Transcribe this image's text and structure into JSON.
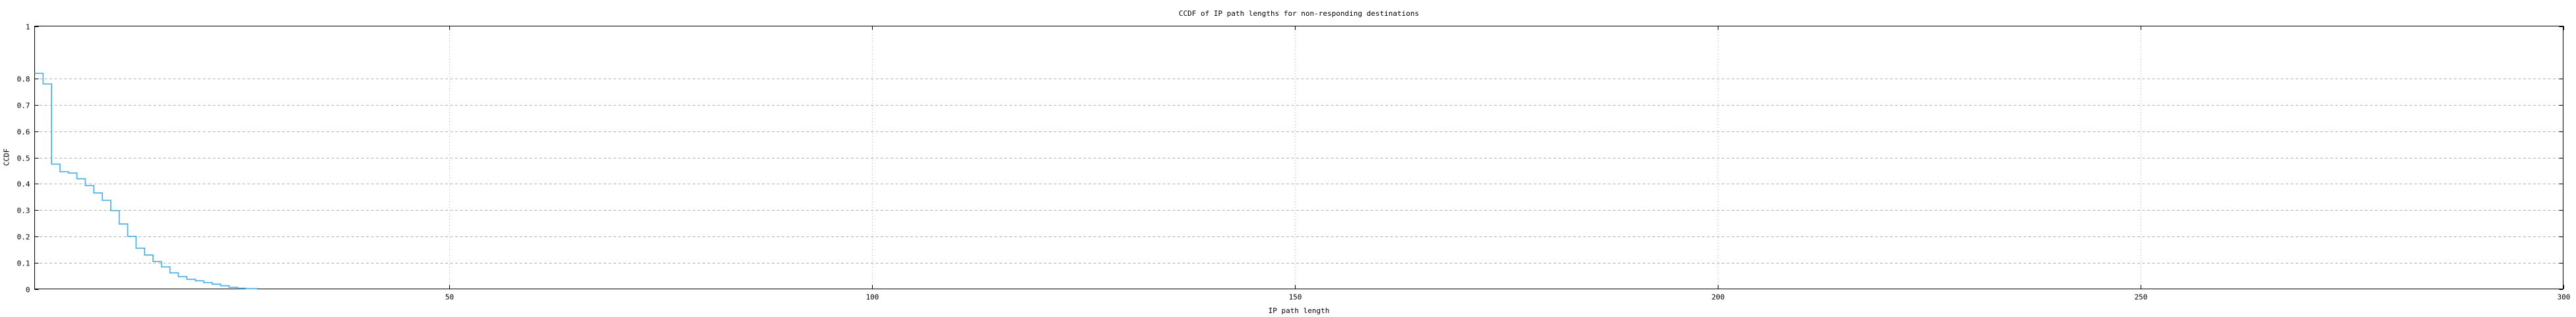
{
  "chart_data": {
    "type": "line",
    "subtype": "ccdf-staircase",
    "title": "CCDF of IP path lengths for non-responding destinations",
    "xlabel": "IP path length",
    "ylabel": "CCDF",
    "xlim": [
      1,
      300
    ],
    "ylim": [
      0,
      1
    ],
    "xticks": [
      {
        "v": 50,
        "label": "50"
      },
      {
        "v": 100,
        "label": "100"
      },
      {
        "v": 150,
        "label": "150"
      },
      {
        "v": 200,
        "label": "200"
      },
      {
        "v": 250,
        "label": "250"
      },
      {
        "v": 300,
        "label": "300"
      }
    ],
    "yticks": [
      {
        "v": 0.0,
        "label": "0"
      },
      {
        "v": 0.1,
        "label": "0.1"
      },
      {
        "v": 0.2,
        "label": "0.2"
      },
      {
        "v": 0.3,
        "label": "0.3"
      },
      {
        "v": 0.4,
        "label": "0.4"
      },
      {
        "v": 0.5,
        "label": "0.5"
      },
      {
        "v": 0.6,
        "label": "0.6"
      },
      {
        "v": 0.7,
        "label": "0.7"
      },
      {
        "v": 0.8,
        "label": "0.8"
      },
      {
        "v": 1.0,
        "label": "1"
      }
    ],
    "grid": true,
    "legend": null,
    "colors": {
      "line": "#56b4e9",
      "grid": "#b0b0b0",
      "frame": "#000000",
      "background": "#ffffff"
    },
    "series": [
      {
        "name": "ccdf",
        "color": "#56b4e9",
        "steps": [
          [
            1,
            0.82
          ],
          [
            2,
            0.78
          ],
          [
            3,
            0.475
          ],
          [
            4,
            0.446
          ],
          [
            5,
            0.441
          ],
          [
            6,
            0.419
          ],
          [
            7,
            0.393
          ],
          [
            8,
            0.365
          ],
          [
            9,
            0.337
          ],
          [
            10,
            0.298
          ],
          [
            11,
            0.247
          ],
          [
            12,
            0.2
          ],
          [
            13,
            0.155
          ],
          [
            14,
            0.129
          ],
          [
            15,
            0.104
          ],
          [
            16,
            0.084
          ],
          [
            17,
            0.061
          ],
          [
            18,
            0.047
          ],
          [
            19,
            0.037
          ],
          [
            20,
            0.031
          ],
          [
            21,
            0.024
          ],
          [
            22,
            0.018
          ],
          [
            23,
            0.012
          ],
          [
            24,
            0.006
          ],
          [
            25,
            0.0025
          ],
          [
            26,
            0.001
          ],
          [
            27.3,
            0.0005
          ]
        ]
      }
    ]
  }
}
